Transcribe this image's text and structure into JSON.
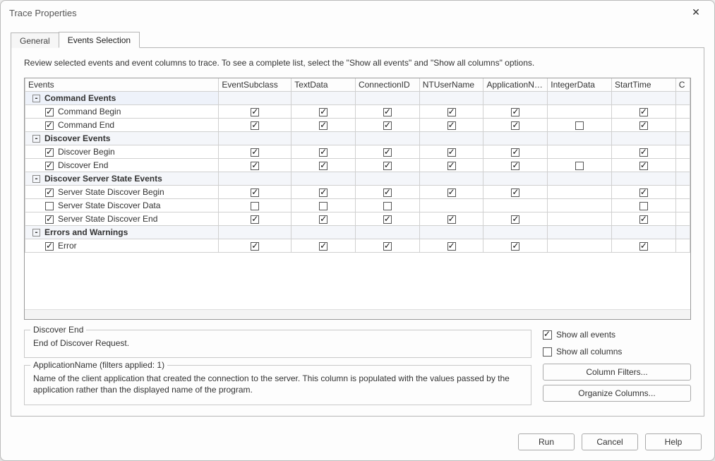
{
  "title": "Trace Properties",
  "tabs": [
    {
      "label": "General",
      "active": false
    },
    {
      "label": "Events Selection",
      "active": true
    }
  ],
  "intro": "Review selected events and event columns to trace. To see a complete list, select the \"Show all events\" and \"Show all columns\" options.",
  "columns": [
    "Events",
    "EventSubclass",
    "TextData",
    "ConnectionID",
    "NTUserName",
    "ApplicationName",
    "IntegerData",
    "StartTime",
    "C"
  ],
  "groups": [
    {
      "name": "Command Events",
      "rows": [
        {
          "label": "Command Begin",
          "checked": true,
          "cells": [
            true,
            true,
            true,
            true,
            true,
            null,
            true
          ]
        },
        {
          "label": "Command End",
          "checked": true,
          "cells": [
            true,
            true,
            true,
            true,
            true,
            false,
            true
          ]
        }
      ]
    },
    {
      "name": "Discover Events",
      "rows": [
        {
          "label": "Discover Begin",
          "checked": true,
          "cells": [
            true,
            true,
            true,
            true,
            true,
            null,
            true
          ]
        },
        {
          "label": "Discover End",
          "checked": true,
          "cells": [
            true,
            true,
            true,
            true,
            true,
            false,
            true
          ]
        }
      ]
    },
    {
      "name": "Discover Server State Events",
      "rows": [
        {
          "label": "Server State Discover Begin",
          "checked": true,
          "cells": [
            true,
            true,
            true,
            true,
            true,
            null,
            true
          ]
        },
        {
          "label": "Server State Discover Data",
          "checked": false,
          "cells": [
            false,
            false,
            false,
            null,
            null,
            null,
            false
          ]
        },
        {
          "label": "Server State Discover End",
          "checked": true,
          "cells": [
            true,
            true,
            true,
            true,
            true,
            null,
            true
          ]
        }
      ]
    },
    {
      "name": "Errors and Warnings",
      "rows": [
        {
          "label": "Error",
          "checked": true,
          "cells": [
            true,
            true,
            true,
            true,
            true,
            null,
            true
          ]
        }
      ]
    }
  ],
  "event_desc": {
    "title": "Discover End",
    "body": "End of Discover Request."
  },
  "column_desc": {
    "title": "ApplicationName (filters applied: 1)",
    "body": "Name of the client application that created the connection to the server. This column is populated with the values passed by the application rather than the displayed name of the program."
  },
  "options": {
    "show_all_events": "Show all events",
    "show_all_events_checked": true,
    "show_all_columns": "Show all columns",
    "show_all_columns_checked": false
  },
  "buttons": {
    "column_filters": "Column Filters...",
    "organize_columns": "Organize Columns...",
    "run": "Run",
    "cancel": "Cancel",
    "help": "Help"
  },
  "colors": {
    "window_bg": "#fdfdfd",
    "border": "#b5b5b5",
    "grid_border": "#d0d0d0",
    "group_bg": "#f4f6fa",
    "text": "#333333"
  }
}
